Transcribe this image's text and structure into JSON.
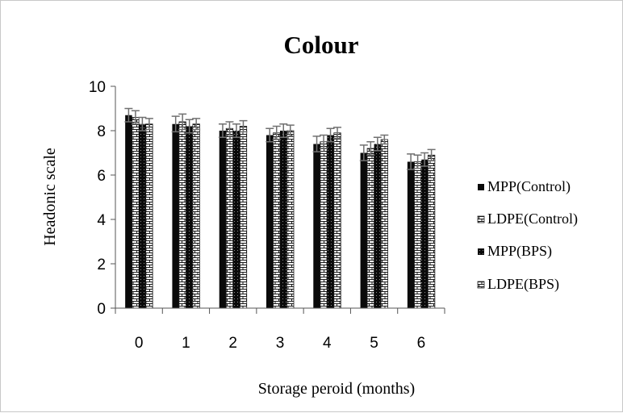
{
  "chart_data": {
    "type": "bar",
    "title": "Colour",
    "xlabel": "Storage peroid (months)",
    "ylabel": "Headonic scale",
    "ylim": [
      0,
      10
    ],
    "yticks": [
      "0",
      "2",
      "4",
      "6",
      "8",
      "10"
    ],
    "categories": [
      "0",
      "1",
      "2",
      "3",
      "4",
      "5",
      "6"
    ],
    "grid": false,
    "legend_position": "right",
    "series": [
      {
        "name": "MPP(Control)",
        "pattern": "solid-dark",
        "values": [
          8.7,
          8.3,
          8.0,
          7.8,
          7.4,
          7.0,
          6.6
        ],
        "errors": [
          0.3,
          0.35,
          0.3,
          0.3,
          0.35,
          0.35,
          0.35
        ]
      },
      {
        "name": "LDPE(Control)",
        "pattern": "light-brick",
        "values": [
          8.6,
          8.4,
          8.1,
          7.9,
          7.5,
          7.2,
          6.6
        ],
        "errors": [
          0.3,
          0.35,
          0.3,
          0.3,
          0.3,
          0.3,
          0.3
        ]
      },
      {
        "name": "MPP(BPS)",
        "pattern": "dark-dotted",
        "values": [
          8.3,
          8.2,
          8.0,
          8.0,
          7.8,
          7.4,
          6.7
        ],
        "errors": [
          0.3,
          0.3,
          0.3,
          0.3,
          0.3,
          0.3,
          0.3
        ]
      },
      {
        "name": "LDPE(BPS)",
        "pattern": "light-brick",
        "values": [
          8.3,
          8.3,
          8.2,
          8.0,
          7.9,
          7.6,
          6.9
        ],
        "errors": [
          0.25,
          0.25,
          0.25,
          0.25,
          0.25,
          0.2,
          0.25
        ]
      }
    ],
    "colors": {
      "dark_bar": "#0a0a0a",
      "light_bar_fill": "#ffffff",
      "light_bar_line": "#1a1a1a",
      "error_bar": "#707070",
      "axis": "#555555"
    }
  }
}
